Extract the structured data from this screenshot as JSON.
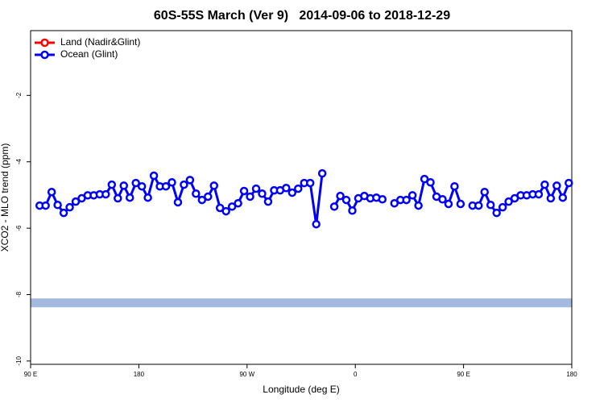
{
  "chart_data": {
    "type": "line",
    "title": "60S-55S March (Ver 9)   2014-09-06 to 2018-12-29",
    "x_label": "Longitude (deg E)",
    "y_label": "XCO2 - MLO trend (ppm)",
    "xlim": [
      90,
      540
    ],
    "ylim": [
      -10.1,
      -0.05
    ],
    "xticks": [
      {
        "value": 90,
        "label": "90 E"
      },
      180,
      {
        "value": 270,
        "label": "90 W"
      },
      {
        "value": 360,
        "label": "0"
      },
      {
        "value": 450,
        "label": "90 E"
      },
      {
        "value": 540,
        "label": "180"
      }
    ],
    "yticks": [
      -10,
      -8,
      -6,
      -4,
      -2
    ],
    "legend_position": "upper-left",
    "reference_band": {
      "value": -8.25,
      "color": "#a3b9dd"
    },
    "x": [
      97.5,
      102.5,
      107.5,
      112.5,
      117.5,
      122.5,
      127.5,
      132.5,
      137.5,
      142.5,
      147.5,
      152.5,
      157.5,
      162.5,
      167.5,
      172.5,
      177.5,
      182.5,
      187.5,
      192.5,
      197.5,
      202.5,
      207.5,
      212.5,
      217.5,
      222.5,
      227.5,
      232.5,
      237.5,
      242.5,
      247.5,
      252.5,
      257.5,
      262.5,
      267.5,
      272.5,
      277.5,
      282.5,
      287.5,
      292.5,
      297.5,
      302.5,
      307.5,
      312.5,
      317.5,
      322.5,
      327.5,
      332.5,
      337.5,
      342.5,
      347.5,
      352.5,
      357.5,
      362.5,
      367.5,
      372.5,
      377.5,
      382.5,
      387.5,
      392.5,
      397.5,
      402.5,
      407.5,
      412.5,
      417.5,
      422.5,
      427.5,
      432.5,
      437.5,
      442.5,
      447.5,
      452.5,
      457.5,
      462.5,
      467.5,
      472.5,
      477.5,
      482.5,
      487.5,
      492.5,
      497.5,
      502.5,
      507.5,
      512.5,
      517.5,
      522.5,
      527.5,
      532.5,
      537.5
    ],
    "series": [
      {
        "name": "Land (Nadir&Glint)",
        "color": "#ff0000",
        "values": [
          null,
          null,
          null,
          null,
          null,
          null,
          null,
          null,
          null,
          null,
          null,
          null,
          null,
          null,
          null,
          null,
          null,
          null,
          null,
          null,
          null,
          null,
          null,
          null,
          null,
          null,
          null,
          null,
          null,
          null,
          null,
          null,
          null,
          null,
          null,
          null,
          null,
          null,
          null,
          null,
          null,
          null,
          null,
          null,
          null,
          null,
          null,
          null,
          null,
          null,
          null,
          null,
          null,
          null,
          null,
          null,
          null,
          null,
          null,
          null,
          null,
          null,
          null,
          null,
          null,
          null,
          null,
          null,
          null,
          null,
          null,
          null,
          null,
          null,
          null,
          null,
          null,
          null,
          null,
          null,
          null,
          null,
          null,
          null,
          null,
          null,
          null,
          null,
          null
        ]
      },
      {
        "name": "Ocean (Glint)",
        "color": "#0000ff",
        "values": [
          -5.32,
          -5.32,
          -4.91,
          -5.3,
          -5.54,
          -5.37,
          -5.2,
          -5.1,
          -5.01,
          -5.01,
          -4.98,
          -4.98,
          -4.69,
          -5.1,
          -4.72,
          -5.08,
          -4.64,
          -4.74,
          -5.08,
          -4.42,
          -4.74,
          -4.74,
          -4.62,
          -5.22,
          -4.69,
          -4.55,
          -4.96,
          -5.15,
          -5.05,
          -4.72,
          -5.39,
          -5.49,
          -5.35,
          -5.25,
          -4.88,
          -5.05,
          -4.81,
          -4.96,
          -5.2,
          -4.86,
          -4.86,
          -4.79,
          -4.93,
          -4.81,
          -4.64,
          -4.64,
          -5.88,
          -4.35,
          null,
          -5.35,
          -5.03,
          -5.15,
          -5.47,
          -5.1,
          -5.03,
          -5.1,
          -5.08,
          -5.13,
          null,
          -5.25,
          -5.15,
          -5.15,
          -5.01,
          -5.32,
          -4.52,
          -4.62,
          -5.05,
          -5.13,
          -5.27,
          -4.74,
          -5.27,
          null,
          -5.32,
          -5.32,
          -4.91,
          -5.3,
          -5.54,
          -5.37,
          -5.2,
          -5.1,
          -5.01,
          -5.01,
          -4.98,
          -4.98,
          -4.69,
          -5.1,
          -4.72,
          -5.08,
          -4.64
        ]
      }
    ]
  }
}
